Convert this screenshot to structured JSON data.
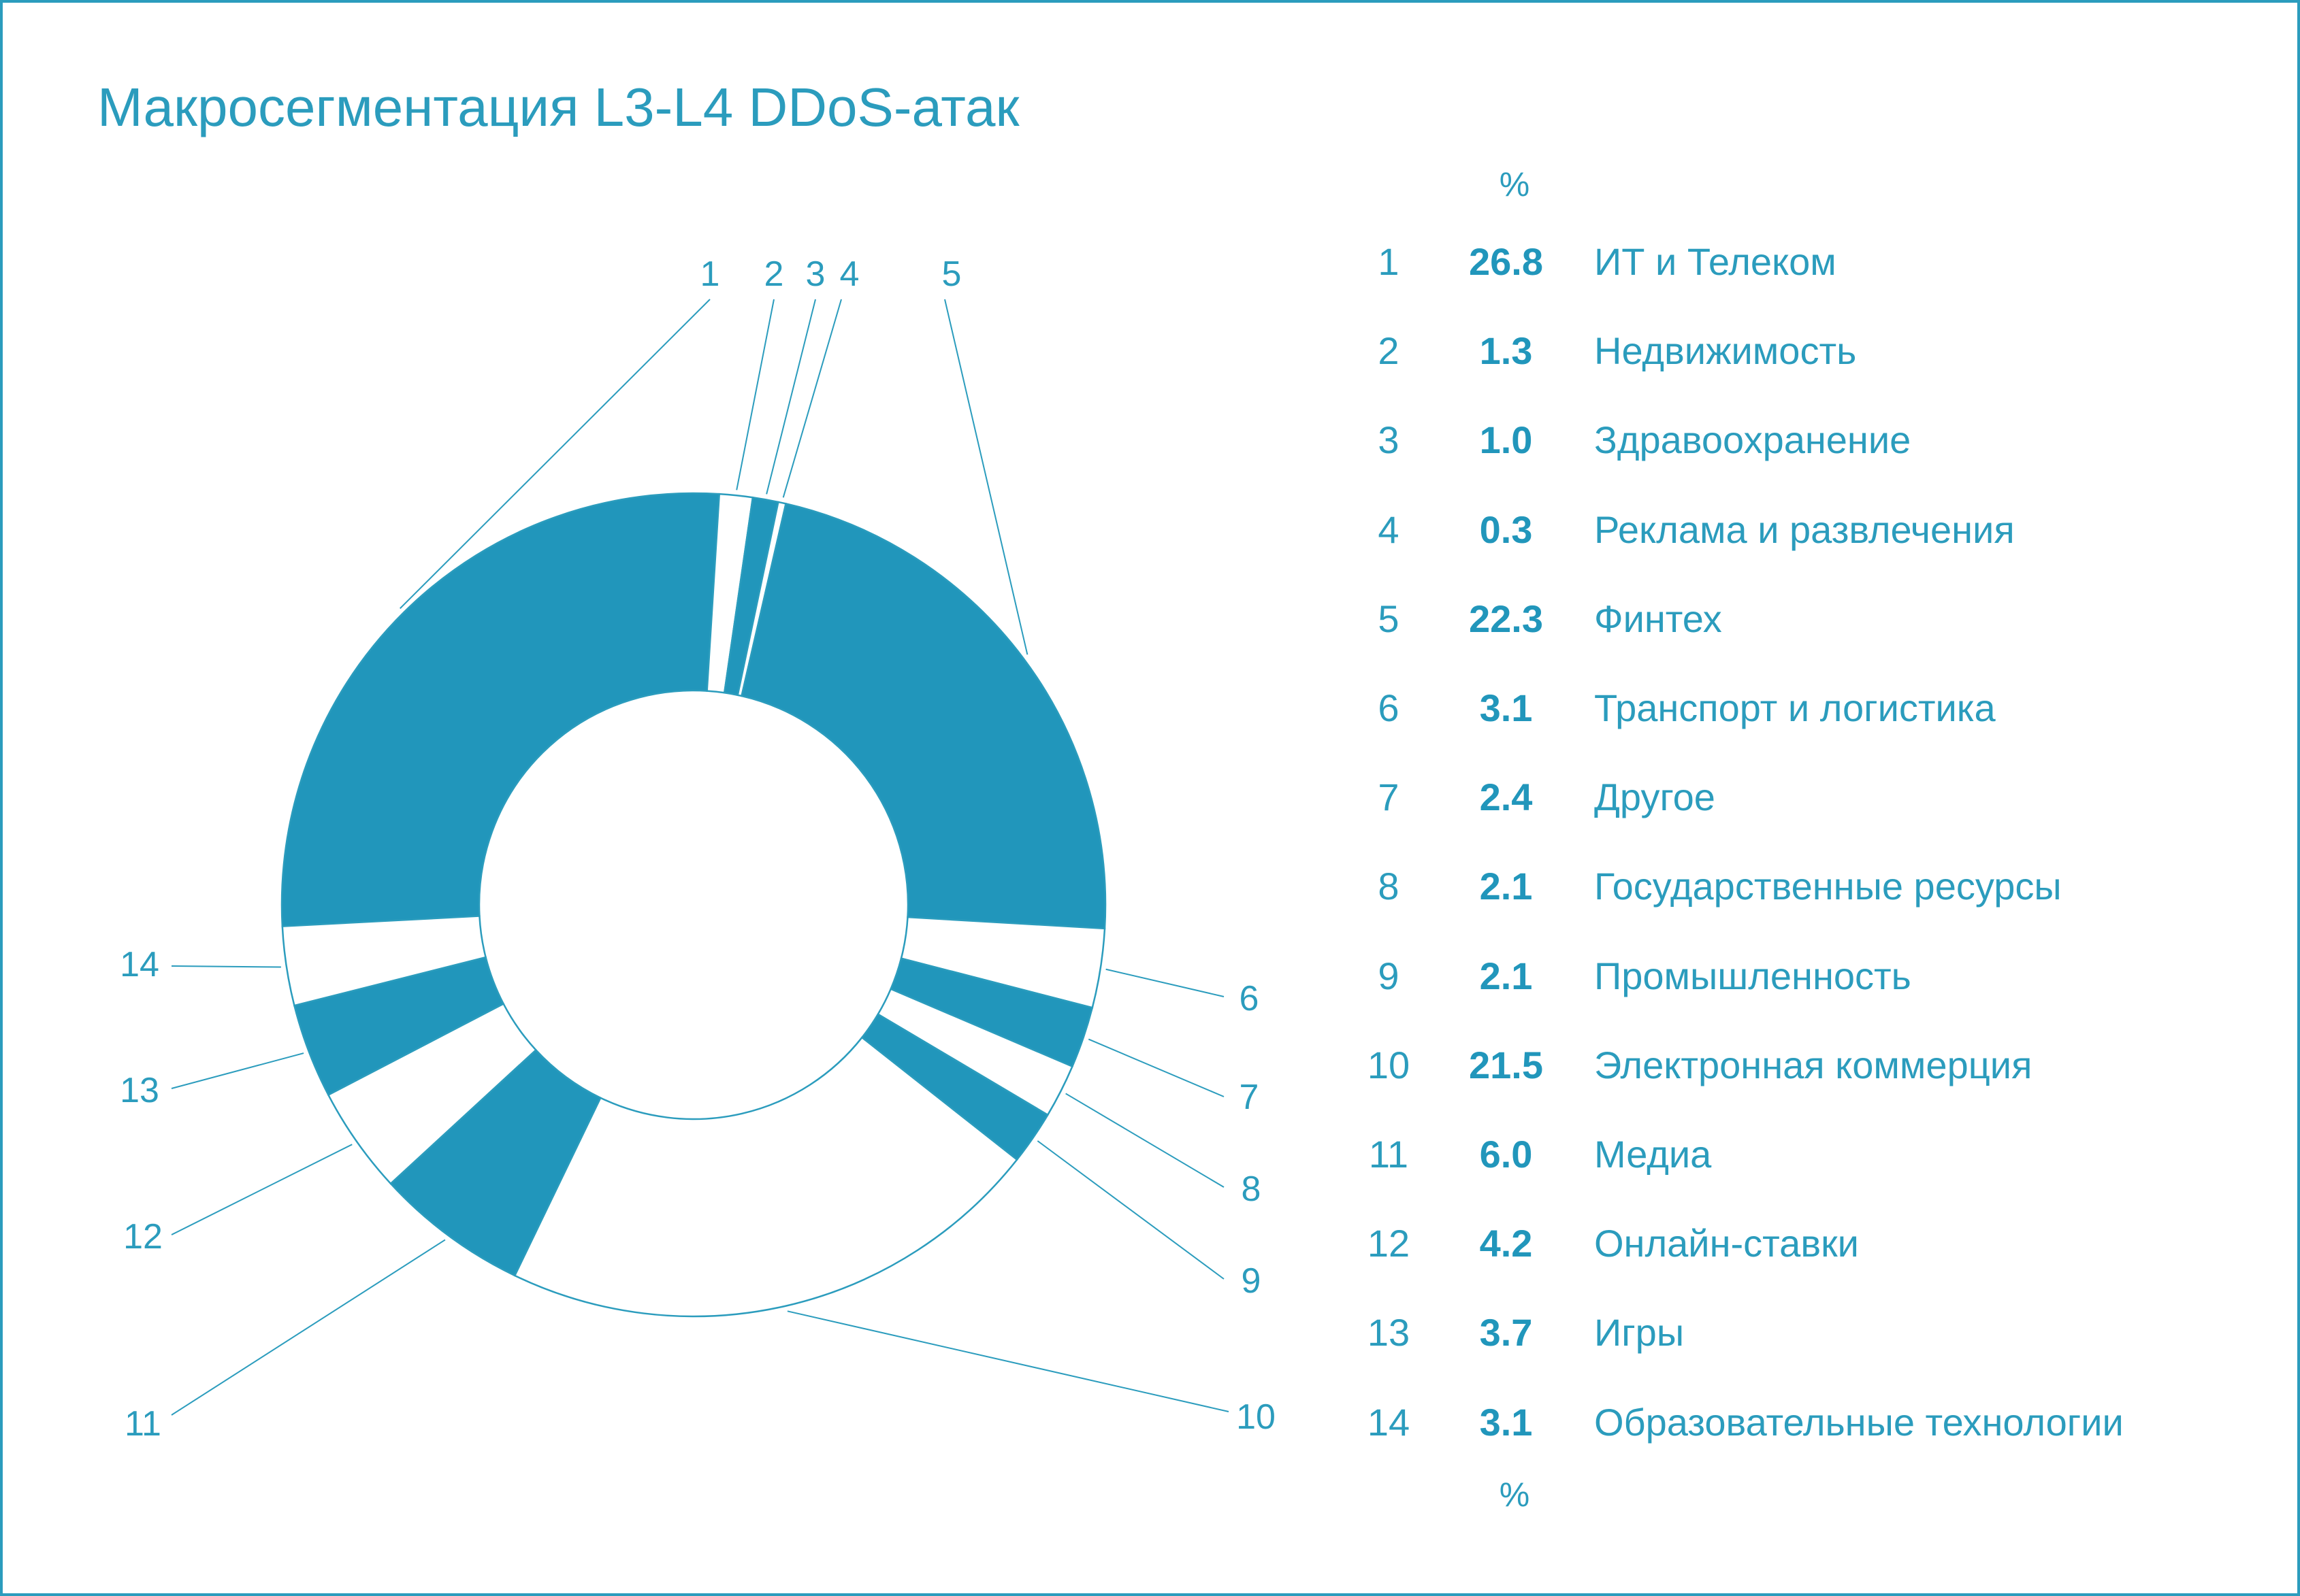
{
  "title": "Макросегментация L3-L4 DDoS-атак",
  "colors": {
    "accent": "#2196bb",
    "text": "#2b9cbd",
    "frame": "#2b9cbd",
    "background": "#ffffff"
  },
  "legend": {
    "percent_top": "%",
    "percent_bottom": "%"
  },
  "chart_data": {
    "type": "pie",
    "donut": true,
    "unit": "%",
    "slices": [
      {
        "id": "1",
        "value": 26.8,
        "label": "ИТ и Телеком",
        "filled": true
      },
      {
        "id": "2",
        "value": 1.3,
        "label": "Недвижимость",
        "filled": false
      },
      {
        "id": "3",
        "value": 1.0,
        "label": "Здравоохранение",
        "filled": true
      },
      {
        "id": "4",
        "value": 0.3,
        "label": "Реклама и развлечения",
        "filled": false
      },
      {
        "id": "5",
        "value": 22.3,
        "label": "Финтех",
        "filled": true
      },
      {
        "id": "6",
        "value": 3.1,
        "label": "Транспорт и логистика",
        "filled": false
      },
      {
        "id": "7",
        "value": 2.4,
        "label": "Другое",
        "filled": true
      },
      {
        "id": "8",
        "value": 2.1,
        "label": "Государственные ресурсы",
        "filled": false
      },
      {
        "id": "9",
        "value": 2.1,
        "label": "Промышленность",
        "filled": true
      },
      {
        "id": "10",
        "value": 21.5,
        "label": "Электронная коммерция",
        "filled": false
      },
      {
        "id": "11",
        "value": 6.0,
        "label": "Медиа",
        "filled": true
      },
      {
        "id": "12",
        "value": 4.2,
        "label": "Онлайн-ставки",
        "filled": false
      },
      {
        "id": "13",
        "value": 3.7,
        "label": "Игры",
        "filled": true
      },
      {
        "id": "14",
        "value": 3.1,
        "label": "Образовательные технологии",
        "filled": false
      }
    ]
  }
}
